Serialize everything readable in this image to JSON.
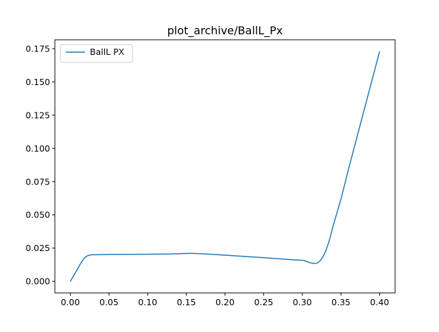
{
  "chart_data": {
    "type": "line",
    "title": "plot_archive/BallL_Px",
    "xlabel": "",
    "ylabel": "",
    "xlim": [
      -0.02,
      0.42
    ],
    "ylim": [
      -0.0087,
      0.1817
    ],
    "grid": false,
    "legend_placement": "top-left",
    "x_ticks": [
      0.0,
      0.05,
      0.1,
      0.15,
      0.2,
      0.25,
      0.3,
      0.35,
      0.4
    ],
    "x_tick_labels": [
      "0.00",
      "0.05",
      "0.10",
      "0.15",
      "0.20",
      "0.25",
      "0.30",
      "0.35",
      "0.40"
    ],
    "y_ticks": [
      0.0,
      0.025,
      0.05,
      0.075,
      0.1,
      0.125,
      0.15,
      0.175
    ],
    "y_tick_labels": [
      "0.000",
      "0.025",
      "0.050",
      "0.075",
      "0.100",
      "0.125",
      "0.150",
      "0.175"
    ],
    "series": [
      {
        "name": "BallL PX",
        "color": "#1f77b4",
        "x": [
          0.0,
          0.005,
          0.01,
          0.015,
          0.02,
          0.025,
          0.03,
          0.05,
          0.1,
          0.13,
          0.16,
          0.2,
          0.25,
          0.28,
          0.3,
          0.305,
          0.31,
          0.315,
          0.32,
          0.325,
          0.33,
          0.335,
          0.34,
          0.35,
          0.36,
          0.37,
          0.38,
          0.39,
          0.4
        ],
        "y": [
          0.0,
          0.005,
          0.01,
          0.015,
          0.0185,
          0.0197,
          0.02,
          0.0202,
          0.0204,
          0.0206,
          0.021,
          0.0197,
          0.0178,
          0.0165,
          0.0158,
          0.015,
          0.014,
          0.0135,
          0.014,
          0.017,
          0.0225,
          0.031,
          0.042,
          0.062,
          0.085,
          0.107,
          0.129,
          0.151,
          0.173
        ]
      }
    ]
  }
}
